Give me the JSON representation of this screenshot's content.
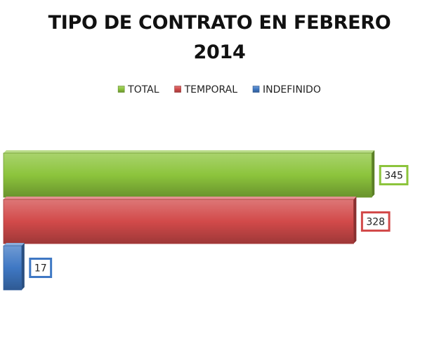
{
  "chart_data": {
    "type": "bar",
    "orientation": "horizontal",
    "title_lines": [
      "TIPO DE CONTRATO EN FEBRERO",
      "2014"
    ],
    "series": [
      {
        "name": "TOTAL",
        "value": 345,
        "label": "345",
        "color": "#8cc43c"
      },
      {
        "name": "TEMPORAL",
        "value": 328,
        "label": "328",
        "color": "#d24a4a"
      },
      {
        "name": "INDEFINIDO",
        "value": 17,
        "label": "17",
        "color": "#3f78c4"
      }
    ],
    "xlim": [
      0,
      360
    ],
    "legend_position": "top-center",
    "grid": false,
    "style": "3d"
  }
}
